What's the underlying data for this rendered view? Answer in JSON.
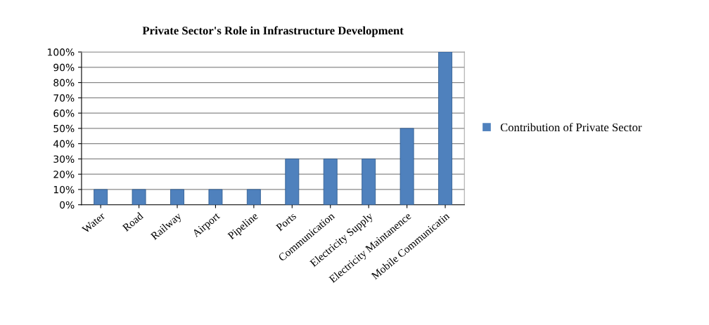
{
  "chart_data": {
    "type": "bar",
    "title": "Private Sector's Role in Infrastructure Development",
    "categories": [
      "Water",
      "Road",
      "Railway",
      "Airport",
      "Pipeline",
      "Ports",
      "Communication",
      "Electricity Supply",
      "Electricity Maintanence",
      "Mobile Communicatin"
    ],
    "series": [
      {
        "name": "Contribution of Private Sector",
        "color": "#4f81bd",
        "values": [
          10,
          10,
          10,
          10,
          10,
          30,
          30,
          30,
          50,
          100
        ]
      }
    ],
    "ylim": [
      0,
      100
    ],
    "yticks": [
      {
        "value": 0,
        "label": "0%"
      },
      {
        "value": 10,
        "label": "10%"
      },
      {
        "value": 20,
        "label": "20%"
      },
      {
        "value": 30,
        "label": "30%"
      },
      {
        "value": 40,
        "label": "40%"
      },
      {
        "value": 50,
        "label": "50%"
      },
      {
        "value": 60,
        "label": "60%"
      },
      {
        "value": 70,
        "label": "70%"
      },
      {
        "value": 80,
        "label": "80%"
      },
      {
        "value": 90,
        "label": "90%"
      },
      {
        "value": 100,
        "label": "100%"
      }
    ],
    "grid": "y",
    "legend": "right"
  }
}
